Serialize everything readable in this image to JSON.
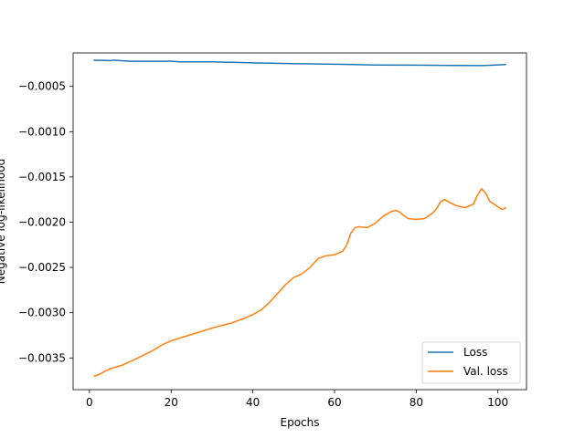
{
  "chart_data": {
    "type": "line",
    "xlabel": "Epochs",
    "ylabel": "Negative log-likelihood",
    "xlim": [
      -4,
      107
    ],
    "ylim": [
      -0.00385,
      -0.00013
    ],
    "xticks": [
      0,
      20,
      40,
      60,
      80,
      100
    ],
    "xtick_labels": [
      "0",
      "20",
      "40",
      "60",
      "80",
      "100"
    ],
    "yticks": [
      -0.0035,
      -0.003,
      -0.0025,
      -0.002,
      -0.0015,
      -0.001,
      -0.0005
    ],
    "ytick_labels": [
      "−0.0035",
      "−0.0030",
      "−0.0025",
      "−0.0020",
      "−0.0015",
      "−0.0010",
      "−0.0005"
    ],
    "grid": false,
    "legend_position": "lower-right",
    "series": [
      {
        "name": "Loss",
        "color": "#1f77b4",
        "x": [
          1,
          5,
          6,
          10,
          20,
          22,
          30,
          40,
          50,
          60,
          70,
          80,
          90,
          96,
          100,
          102
        ],
        "y": [
          -0.00021,
          -0.000215,
          -0.00021,
          -0.000222,
          -0.000222,
          -0.000228,
          -0.000228,
          -0.00024,
          -0.000248,
          -0.000255,
          -0.000263,
          -0.000265,
          -0.000268,
          -0.00027,
          -0.000262,
          -0.000258
        ]
      },
      {
        "name": "Val. loss",
        "color": "#ff7f0e",
        "x": [
          1,
          2,
          5,
          8,
          10,
          15,
          18,
          20,
          25,
          30,
          35,
          38,
          40,
          42,
          44,
          46,
          48,
          50,
          52,
          54,
          56,
          58,
          60,
          62,
          63,
          64,
          65,
          66,
          68,
          70,
          72,
          74,
          75,
          76,
          77,
          78,
          80,
          82,
          84,
          85,
          86,
          87,
          88,
          90,
          92,
          94,
          95,
          96,
          97,
          98,
          100,
          101,
          102
        ],
        "y": [
          -0.0037,
          -0.00369,
          -0.00362,
          -0.00358,
          -0.00354,
          -0.00343,
          -0.00335,
          -0.00331,
          -0.00324,
          -0.00317,
          -0.00311,
          -0.00306,
          -0.00302,
          -0.00297,
          -0.00289,
          -0.00279,
          -0.00269,
          -0.00261,
          -0.00257,
          -0.0025,
          -0.0024,
          -0.00237,
          -0.00236,
          -0.00232,
          -0.00225,
          -0.00212,
          -0.00206,
          -0.00205,
          -0.00206,
          -0.00201,
          -0.00193,
          -0.00188,
          -0.00187,
          -0.00189,
          -0.00193,
          -0.00196,
          -0.00197,
          -0.00196,
          -0.0019,
          -0.00185,
          -0.00177,
          -0.00175,
          -0.00178,
          -0.00182,
          -0.00184,
          -0.0018,
          -0.0017,
          -0.00163,
          -0.00168,
          -0.00177,
          -0.00183,
          -0.00186,
          -0.00184
        ]
      }
    ]
  }
}
